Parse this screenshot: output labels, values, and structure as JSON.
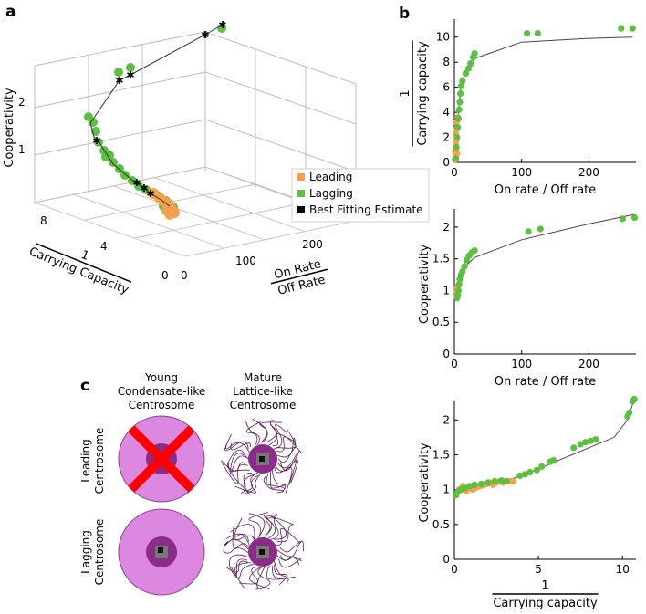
{
  "panels": {
    "a": "a",
    "b": "b",
    "c": "c"
  },
  "colors": {
    "leading": "#f5a04b",
    "lagging": "#5bbf3f",
    "estimate": "#000000",
    "fit_line": "#444444",
    "condensate": "#dd88e0",
    "inner_ring": "#8b2c8b",
    "core": "#777777"
  },
  "panel_a": {
    "zlabel": "Cooperativity",
    "z_ticks": [
      "1",
      "2"
    ],
    "cap_ticks": [
      "0",
      "4",
      "8"
    ],
    "cap_label_num": "1",
    "cap_label": "Carrying Capacity",
    "rate_ticks": [
      "0",
      "100",
      "200"
    ],
    "rate_label_num": "On Rate",
    "rate_label_den": "Off Rate",
    "legend": [
      "Leading",
      "Lagging",
      "Best Fitting Estimate"
    ]
  },
  "panel_c": {
    "col1": [
      "Young",
      "Condensate-like",
      "Centrosome"
    ],
    "col2": [
      "Mature",
      "Lattice-like",
      "Centrosome"
    ],
    "row1": [
      "Leading",
      "Centrosome"
    ],
    "row2": [
      "Lagging",
      "Centrosome"
    ]
  },
  "chart_data": [
    {
      "type": "scatter",
      "title": "b (top)",
      "xlabel": "On rate / Off rate",
      "ylabel_num": "1",
      "ylabel": "Carrying capacity",
      "xlim": [
        0,
        270
      ],
      "ylim": [
        0,
        11
      ],
      "x_ticks": [
        0,
        100,
        200
      ],
      "y_ticks": [
        0,
        2,
        4,
        6,
        8,
        10
      ],
      "series": [
        {
          "name": "Leading",
          "points": [
            [
              1,
              0.2
            ],
            [
              2,
              0.5
            ],
            [
              1,
              0.9
            ],
            [
              2,
              1.4
            ],
            [
              3,
              1.8
            ],
            [
              2,
              2.3
            ],
            [
              4,
              2.7
            ],
            [
              3,
              3.2
            ],
            [
              5,
              3.6
            ],
            [
              2,
              1.1
            ],
            [
              4,
              0.7
            ]
          ]
        },
        {
          "name": "Lagging",
          "points": [
            [
              2,
              0.3
            ],
            [
              3,
              1.2
            ],
            [
              4,
              2.0
            ],
            [
              5,
              2.8
            ],
            [
              6,
              3.5
            ],
            [
              7,
              4.2
            ],
            [
              8,
              4.8
            ],
            [
              9,
              5.5
            ],
            [
              10,
              6.1
            ],
            [
              12,
              6.5
            ],
            [
              17,
              7.1
            ],
            [
              21,
              7.5
            ],
            [
              24,
              7.9
            ],
            [
              28,
              8.4
            ],
            [
              30,
              8.7
            ],
            [
              108,
              10.3
            ],
            [
              124,
              10.3
            ],
            [
              248,
              10.7
            ],
            [
              265,
              10.7
            ]
          ]
        },
        {
          "name": "Fit",
          "points": [
            [
              0,
              0
            ],
            [
              3,
              2
            ],
            [
              6,
              4
            ],
            [
              10,
              6.2
            ],
            [
              18,
              7.5
            ],
            [
              30,
              8.3
            ],
            [
              100,
              9.6
            ],
            [
              200,
              9.9
            ],
            [
              265,
              10.0
            ]
          ]
        }
      ]
    },
    {
      "type": "scatter",
      "title": "b (middle)",
      "xlabel": "On rate / Off rate",
      "ylabel": "Cooperativity",
      "xlim": [
        0,
        270
      ],
      "ylim": [
        0,
        2.2
      ],
      "x_ticks": [
        0,
        100,
        200
      ],
      "y_ticks": [
        0,
        0.5,
        1,
        1.5,
        2
      ],
      "series": [
        {
          "name": "Leading",
          "points": [
            [
              3,
              0.95
            ],
            [
              4,
              1.0
            ],
            [
              5,
              1.05
            ],
            [
              3,
              1.02
            ],
            [
              6,
              1.08
            ]
          ]
        },
        {
          "name": "Lagging",
          "points": [
            [
              4,
              0.88
            ],
            [
              5,
              0.93
            ],
            [
              6,
              1.0
            ],
            [
              7,
              1.1
            ],
            [
              8,
              1.18
            ],
            [
              10,
              1.25
            ],
            [
              12,
              1.3
            ],
            [
              15,
              1.38
            ],
            [
              18,
              1.48
            ],
            [
              22,
              1.55
            ],
            [
              26,
              1.6
            ],
            [
              30,
              1.63
            ],
            [
              110,
              1.93
            ],
            [
              128,
              1.97
            ],
            [
              250,
              2.13
            ],
            [
              268,
              2.15
            ]
          ]
        },
        {
          "name": "Fit",
          "points": [
            [
              0,
              0.9
            ],
            [
              5,
              1.0
            ],
            [
              10,
              1.2
            ],
            [
              20,
              1.42
            ],
            [
              30,
              1.52
            ],
            [
              100,
              1.8
            ],
            [
              200,
              2.05
            ],
            [
              268,
              2.2
            ]
          ]
        }
      ]
    },
    {
      "type": "scatter",
      "title": "b (bottom)",
      "xlabel_num": "1",
      "xlabel": "Carrying capacity",
      "ylabel": "Cooperativity",
      "xlim": [
        0,
        10.8
      ],
      "ylim": [
        0,
        2.2
      ],
      "x_ticks": [
        0,
        5,
        10
      ],
      "y_ticks": [
        0,
        0.5,
        1,
        1.5,
        2
      ],
      "series": [
        {
          "name": "Leading",
          "points": [
            [
              0.3,
              1.0
            ],
            [
              0.5,
              1.05
            ],
            [
              0.7,
              0.98
            ],
            [
              0.9,
              1.02
            ],
            [
              1.1,
              1.0
            ],
            [
              1.3,
              1.03
            ],
            [
              1.5,
              1.05
            ],
            [
              1.7,
              1.06
            ],
            [
              1.9,
              1.08
            ],
            [
              2.1,
              1.1
            ],
            [
              2.3,
              1.07
            ],
            [
              2.5,
              1.1
            ],
            [
              2.7,
              1.12
            ],
            [
              2.9,
              1.1
            ],
            [
              3.1,
              1.12
            ],
            [
              3.3,
              1.12
            ],
            [
              3.5,
              1.12
            ]
          ]
        },
        {
          "name": "Lagging",
          "points": [
            [
              0.1,
              0.92
            ],
            [
              0.2,
              0.97
            ],
            [
              0.4,
              1.0
            ],
            [
              0.6,
              1.02
            ],
            [
              0.9,
              1.05
            ],
            [
              1.2,
              1.07
            ],
            [
              1.6,
              1.08
            ],
            [
              2.0,
              1.1
            ],
            [
              2.4,
              1.12
            ],
            [
              2.8,
              1.13
            ],
            [
              3.1,
              1.12
            ],
            [
              3.9,
              1.2
            ],
            [
              4.2,
              1.22
            ],
            [
              4.5,
              1.25
            ],
            [
              4.9,
              1.28
            ],
            [
              5.2,
              1.33
            ],
            [
              5.7,
              1.4
            ],
            [
              5.9,
              1.42
            ],
            [
              7.1,
              1.6
            ],
            [
              7.5,
              1.65
            ],
            [
              7.8,
              1.68
            ],
            [
              8.1,
              1.7
            ],
            [
              8.4,
              1.72
            ],
            [
              10.3,
              2.05
            ],
            [
              10.4,
              2.1
            ],
            [
              10.6,
              2.27
            ],
            [
              10.7,
              2.3
            ]
          ]
        },
        {
          "name": "Fit",
          "points": [
            [
              0,
              0.95
            ],
            [
              2,
              1.05
            ],
            [
              4,
              1.2
            ],
            [
              6,
              1.4
            ],
            [
              8,
              1.6
            ],
            [
              9.5,
              1.75
            ],
            [
              10.3,
              2.0
            ],
            [
              10.7,
              2.3
            ]
          ]
        }
      ]
    }
  ]
}
